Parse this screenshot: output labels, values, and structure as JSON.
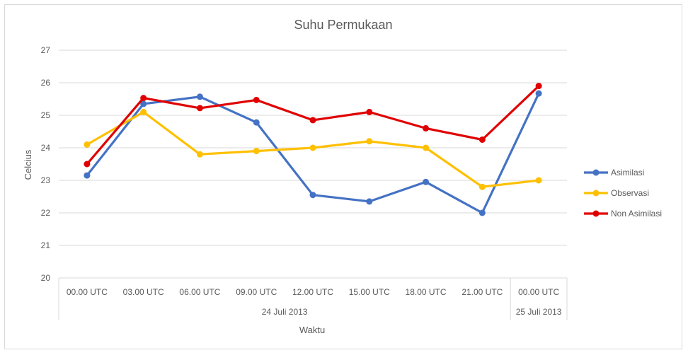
{
  "chart_data": {
    "type": "line",
    "title": "Suhu Permukaan",
    "xlabel": "Waktu",
    "ylabel": "Celcius",
    "ylim": [
      20,
      27
    ],
    "yticks": [
      20,
      21,
      22,
      23,
      24,
      25,
      26,
      27
    ],
    "grid": true,
    "legend_position": "right",
    "categories": [
      "00.00 UTC",
      "03.00 UTC",
      "06.00 UTC",
      "09.00 UTC",
      "12.00 UTC",
      "15.00 UTC",
      "18.00 UTC",
      "21.00 UTC",
      "00.00 UTC"
    ],
    "category_groups": [
      {
        "label": "24 Juli 2013",
        "span": 8
      },
      {
        "label": "25 Juli 2013",
        "span": 1
      }
    ],
    "series": [
      {
        "name": "Asimilasi",
        "color": "#4472c4",
        "values": [
          23.15,
          25.35,
          25.57,
          24.78,
          22.55,
          22.35,
          22.95,
          22.0,
          25.67
        ]
      },
      {
        "name": "Observasi",
        "color": "#ffc000",
        "values": [
          24.1,
          25.1,
          23.8,
          23.9,
          24.0,
          24.2,
          24.0,
          22.8,
          23.0
        ]
      },
      {
        "name": "Non Asimilasi",
        "color": "#e00000",
        "values": [
          23.5,
          25.53,
          25.22,
          25.47,
          24.85,
          25.1,
          24.6,
          24.25,
          25.9
        ]
      }
    ]
  }
}
